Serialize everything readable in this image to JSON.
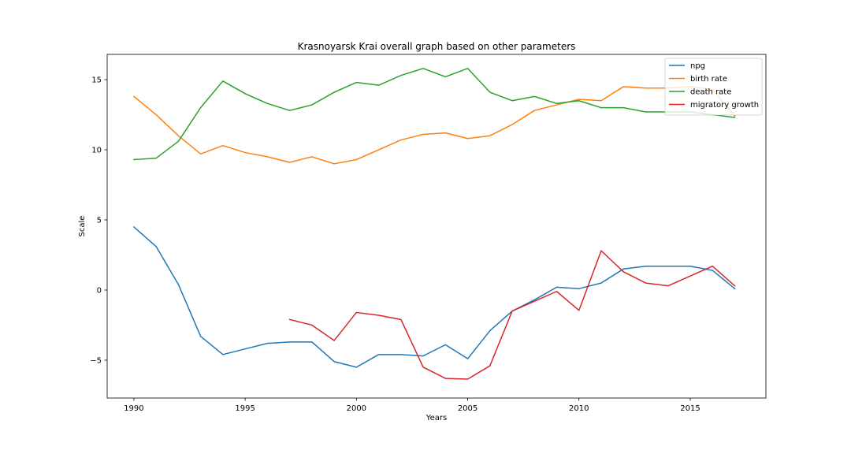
{
  "chart_data": {
    "type": "line",
    "title": "Krasnoyarsk Krai overall graph based on other parameters",
    "xlabel": "Years",
    "ylabel": "Scale",
    "xlim": [
      1988.8,
      2018.4
    ],
    "ylim": [
      -7.7,
      16.8
    ],
    "xticks": [
      1990,
      1995,
      2000,
      2005,
      2010,
      2015
    ],
    "yticks": [
      -5,
      0,
      5,
      10,
      15
    ],
    "grid": false,
    "legend_position": "top-right",
    "x": [
      1990,
      1991,
      1992,
      1993,
      1994,
      1995,
      1996,
      1997,
      1998,
      1999,
      2000,
      2001,
      2002,
      2003,
      2004,
      2005,
      2006,
      2007,
      2008,
      2009,
      2010,
      2011,
      2012,
      2013,
      2014,
      2015,
      2016,
      2017
    ],
    "series": [
      {
        "name": "npg",
        "color": "#1f77b4",
        "values": [
          4.5,
          3.1,
          0.4,
          -3.3,
          -4.6,
          -4.2,
          -3.8,
          -3.7,
          -3.7,
          -5.1,
          -5.5,
          -4.6,
          -4.6,
          -4.7,
          -3.9,
          -4.9,
          -2.9,
          -1.5,
          -0.7,
          0.2,
          0.1,
          0.5,
          1.5,
          1.7,
          1.7,
          1.7,
          1.4,
          0.1
        ]
      },
      {
        "name": "birth rate",
        "color": "#ff7f0e",
        "values": [
          13.8,
          12.5,
          11.0,
          9.7,
          10.3,
          9.8,
          9.5,
          9.1,
          9.5,
          9.0,
          9.3,
          10.0,
          10.7,
          11.1,
          11.2,
          10.8,
          11.0,
          11.8,
          12.8,
          13.2,
          13.6,
          13.5,
          14.5,
          14.4,
          14.4,
          14.5,
          14.3,
          12.4
        ]
      },
      {
        "name": "death rate",
        "color": "#2ca02c",
        "values": [
          9.3,
          9.4,
          10.6,
          13.0,
          14.9,
          14.0,
          13.3,
          12.8,
          13.2,
          14.1,
          14.8,
          14.6,
          15.3,
          15.8,
          15.2,
          15.8,
          14.1,
          13.5,
          13.8,
          13.3,
          13.5,
          13.0,
          13.0,
          12.7,
          12.7,
          12.7,
          12.5,
          12.3
        ]
      },
      {
        "name": "migratory growth",
        "color": "#d62728",
        "values": [
          null,
          null,
          null,
          null,
          null,
          null,
          null,
          -2.1,
          -2.5,
          -3.6,
          -1.6,
          -1.8,
          -2.1,
          -5.5,
          -6.3,
          -6.35,
          -5.4,
          -1.5,
          -0.8,
          -0.1,
          -1.45,
          2.8,
          1.3,
          0.5,
          0.3,
          1.0,
          1.7,
          0.3
        ]
      }
    ]
  }
}
